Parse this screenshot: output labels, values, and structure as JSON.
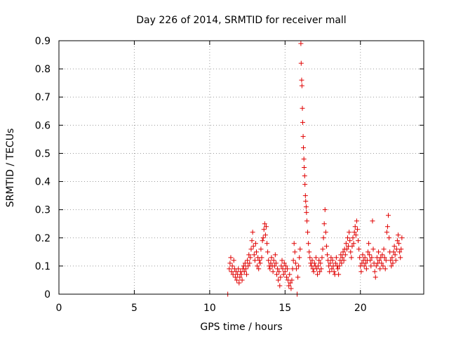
{
  "chart_data": {
    "type": "scatter",
    "title": "Day 226 of 2014, SRMTID for receiver mall",
    "xlabel": "GPS time / hours",
    "ylabel": "SRMTID / TECUs",
    "xlim": [
      0,
      24.2
    ],
    "ylim": [
      0,
      0.9
    ],
    "xticks": [
      0,
      5,
      10,
      15,
      20
    ],
    "xtick_labels": [
      "0",
      "5",
      "10",
      "15",
      "20"
    ],
    "yticks": [
      0,
      0.1,
      0.2,
      0.3,
      0.4,
      0.5,
      0.6,
      0.7,
      0.8,
      0.9
    ],
    "ytick_labels": [
      "0",
      "0.1",
      "0.2",
      "0.3",
      "0.4",
      "0.5",
      "0.6",
      "0.7",
      "0.8",
      "0.9"
    ],
    "grid": true,
    "marker": "+",
    "color": "#e00000",
    "series": [
      {
        "name": "SRMTID",
        "points": [
          [
            11.2,
            0.0
          ],
          [
            15.8,
            0.0
          ],
          [
            11.3,
            0.09
          ],
          [
            11.35,
            0.11
          ],
          [
            11.4,
            0.13
          ],
          [
            11.45,
            0.08
          ],
          [
            11.5,
            0.1
          ],
          [
            11.55,
            0.07
          ],
          [
            11.6,
            0.12
          ],
          [
            11.65,
            0.09
          ],
          [
            11.7,
            0.06
          ],
          [
            11.75,
            0.08
          ],
          [
            11.8,
            0.05
          ],
          [
            11.85,
            0.07
          ],
          [
            11.9,
            0.09
          ],
          [
            11.95,
            0.04
          ],
          [
            12.0,
            0.06
          ],
          [
            12.05,
            0.08
          ],
          [
            12.1,
            0.07
          ],
          [
            12.15,
            0.05
          ],
          [
            12.2,
            0.09
          ],
          [
            12.25,
            0.1
          ],
          [
            12.3,
            0.08
          ],
          [
            12.35,
            0.11
          ],
          [
            12.4,
            0.09
          ],
          [
            12.45,
            0.07
          ],
          [
            12.5,
            0.12
          ],
          [
            12.55,
            0.1
          ],
          [
            12.6,
            0.14
          ],
          [
            12.65,
            0.11
          ],
          [
            12.7,
            0.13
          ],
          [
            12.75,
            0.16
          ],
          [
            12.8,
            0.19
          ],
          [
            12.85,
            0.22
          ],
          [
            12.9,
            0.17
          ],
          [
            12.95,
            0.14
          ],
          [
            13.0,
            0.12
          ],
          [
            13.05,
            0.18
          ],
          [
            13.1,
            0.15
          ],
          [
            13.15,
            0.1
          ],
          [
            13.2,
            0.13
          ],
          [
            13.25,
            0.09
          ],
          [
            13.3,
            0.12
          ],
          [
            13.35,
            0.11
          ],
          [
            13.4,
            0.16
          ],
          [
            13.45,
            0.13
          ],
          [
            13.5,
            0.19
          ],
          [
            13.55,
            0.2
          ],
          [
            13.6,
            0.23
          ],
          [
            13.65,
            0.25
          ],
          [
            13.7,
            0.21
          ],
          [
            13.75,
            0.24
          ],
          [
            13.8,
            0.18
          ],
          [
            13.85,
            0.15
          ],
          [
            13.9,
            0.12
          ],
          [
            13.95,
            0.1
          ],
          [
            14.0,
            0.09
          ],
          [
            14.05,
            0.11
          ],
          [
            14.1,
            0.13
          ],
          [
            14.15,
            0.1
          ],
          [
            14.2,
            0.08
          ],
          [
            14.25,
            0.12
          ],
          [
            14.3,
            0.1
          ],
          [
            14.35,
            0.14
          ],
          [
            14.4,
            0.11
          ],
          [
            14.45,
            0.07
          ],
          [
            14.5,
            0.09
          ],
          [
            14.55,
            0.05
          ],
          [
            14.6,
            0.08
          ],
          [
            14.65,
            0.03
          ],
          [
            14.7,
            0.06
          ],
          [
            14.75,
            0.1
          ],
          [
            14.8,
            0.12
          ],
          [
            14.85,
            0.09
          ],
          [
            14.9,
            0.07
          ],
          [
            14.95,
            0.11
          ],
          [
            15.0,
            0.08
          ],
          [
            15.05,
            0.1
          ],
          [
            15.1,
            0.06
          ],
          [
            15.15,
            0.09
          ],
          [
            15.2,
            0.05
          ],
          [
            15.25,
            0.03
          ],
          [
            15.3,
            0.07
          ],
          [
            15.35,
            0.04
          ],
          [
            15.4,
            0.02
          ],
          [
            15.45,
            0.05
          ],
          [
            15.5,
            0.09
          ],
          [
            15.55,
            0.12
          ],
          [
            15.6,
            0.18
          ],
          [
            15.65,
            0.15
          ],
          [
            15.7,
            0.11
          ],
          [
            15.75,
            0.09
          ],
          [
            15.85,
            0.06
          ],
          [
            15.9,
            0.1
          ],
          [
            15.95,
            0.13
          ],
          [
            16.0,
            0.16
          ],
          [
            16.05,
            0.89
          ],
          [
            16.07,
            0.82
          ],
          [
            16.1,
            0.76
          ],
          [
            16.12,
            0.74
          ],
          [
            16.15,
            0.66
          ],
          [
            16.17,
            0.61
          ],
          [
            16.2,
            0.56
          ],
          [
            16.22,
            0.52
          ],
          [
            16.25,
            0.48
          ],
          [
            16.27,
            0.45
          ],
          [
            16.3,
            0.42
          ],
          [
            16.32,
            0.39
          ],
          [
            16.35,
            0.35
          ],
          [
            16.37,
            0.33
          ],
          [
            16.4,
            0.31
          ],
          [
            16.42,
            0.29
          ],
          [
            16.45,
            0.26
          ],
          [
            16.5,
            0.22
          ],
          [
            16.55,
            0.18
          ],
          [
            16.6,
            0.15
          ],
          [
            16.65,
            0.13
          ],
          [
            16.7,
            0.11
          ],
          [
            16.75,
            0.1
          ],
          [
            16.8,
            0.12
          ],
          [
            16.85,
            0.09
          ],
          [
            16.9,
            0.08
          ],
          [
            16.95,
            0.11
          ],
          [
            17.0,
            0.1
          ],
          [
            17.05,
            0.13
          ],
          [
            17.1,
            0.09
          ],
          [
            17.15,
            0.07
          ],
          [
            17.2,
            0.1
          ],
          [
            17.25,
            0.12
          ],
          [
            17.3,
            0.08
          ],
          [
            17.35,
            0.11
          ],
          [
            17.4,
            0.09
          ],
          [
            17.45,
            0.13
          ],
          [
            17.5,
            0.16
          ],
          [
            17.55,
            0.2
          ],
          [
            17.6,
            0.25
          ],
          [
            17.65,
            0.3
          ],
          [
            17.7,
            0.22
          ],
          [
            17.75,
            0.17
          ],
          [
            17.8,
            0.14
          ],
          [
            17.85,
            0.12
          ],
          [
            17.9,
            0.1
          ],
          [
            17.95,
            0.08
          ],
          [
            18.0,
            0.11
          ],
          [
            18.05,
            0.13
          ],
          [
            18.1,
            0.09
          ],
          [
            18.15,
            0.12
          ],
          [
            18.2,
            0.1
          ],
          [
            18.25,
            0.08
          ],
          [
            18.3,
            0.07
          ],
          [
            18.35,
            0.11
          ],
          [
            18.4,
            0.13
          ],
          [
            18.45,
            0.1
          ],
          [
            18.5,
            0.09
          ],
          [
            18.55,
            0.07
          ],
          [
            18.6,
            0.1
          ],
          [
            18.65,
            0.12
          ],
          [
            18.7,
            0.14
          ],
          [
            18.75,
            0.11
          ],
          [
            18.8,
            0.13
          ],
          [
            18.85,
            0.15
          ],
          [
            18.9,
            0.12
          ],
          [
            18.95,
            0.16
          ],
          [
            19.0,
            0.14
          ],
          [
            19.05,
            0.18
          ],
          [
            19.1,
            0.16
          ],
          [
            19.15,
            0.2
          ],
          [
            19.2,
            0.17
          ],
          [
            19.25,
            0.22
          ],
          [
            19.3,
            0.19
          ],
          [
            19.35,
            0.15
          ],
          [
            19.4,
            0.13
          ],
          [
            19.45,
            0.17
          ],
          [
            19.5,
            0.2
          ],
          [
            19.55,
            0.18
          ],
          [
            19.6,
            0.22
          ],
          [
            19.65,
            0.24
          ],
          [
            19.7,
            0.21
          ],
          [
            19.75,
            0.26
          ],
          [
            19.8,
            0.23
          ],
          [
            19.85,
            0.19
          ],
          [
            19.9,
            0.16
          ],
          [
            19.95,
            0.13
          ],
          [
            20.0,
            0.1
          ],
          [
            20.05,
            0.08
          ],
          [
            20.1,
            0.11
          ],
          [
            20.15,
            0.14
          ],
          [
            20.2,
            0.12
          ],
          [
            20.25,
            0.1
          ],
          [
            20.3,
            0.13
          ],
          [
            20.35,
            0.11
          ],
          [
            20.4,
            0.09
          ],
          [
            20.45,
            0.12
          ],
          [
            20.5,
            0.15
          ],
          [
            20.55,
            0.18
          ],
          [
            20.6,
            0.14
          ],
          [
            20.65,
            0.12
          ],
          [
            20.7,
            0.1
          ],
          [
            20.75,
            0.13
          ],
          [
            20.8,
            0.26
          ],
          [
            20.85,
            0.16
          ],
          [
            20.9,
            0.11
          ],
          [
            20.95,
            0.08
          ],
          [
            21.0,
            0.06
          ],
          [
            21.05,
            0.1
          ],
          [
            21.1,
            0.13
          ],
          [
            21.15,
            0.11
          ],
          [
            21.2,
            0.15
          ],
          [
            21.25,
            0.12
          ],
          [
            21.3,
            0.09
          ],
          [
            21.35,
            0.13
          ],
          [
            21.4,
            0.11
          ],
          [
            21.45,
            0.14
          ],
          [
            21.5,
            0.1
          ],
          [
            21.55,
            0.16
          ],
          [
            21.6,
            0.13
          ],
          [
            21.65,
            0.09
          ],
          [
            21.7,
            0.12
          ],
          [
            21.75,
            0.22
          ],
          [
            21.8,
            0.24
          ],
          [
            21.85,
            0.28
          ],
          [
            21.9,
            0.2
          ],
          [
            21.95,
            0.15
          ],
          [
            22.0,
            0.12
          ],
          [
            22.05,
            0.1
          ],
          [
            22.1,
            0.13
          ],
          [
            22.15,
            0.11
          ],
          [
            22.2,
            0.15
          ],
          [
            22.25,
            0.17
          ],
          [
            22.3,
            0.14
          ],
          [
            22.35,
            0.12
          ],
          [
            22.4,
            0.16
          ],
          [
            22.45,
            0.19
          ],
          [
            22.5,
            0.21
          ],
          [
            22.55,
            0.18
          ],
          [
            22.6,
            0.15
          ],
          [
            22.65,
            0.13
          ],
          [
            22.7,
            0.16
          ],
          [
            22.75,
            0.2
          ]
        ]
      }
    ]
  }
}
